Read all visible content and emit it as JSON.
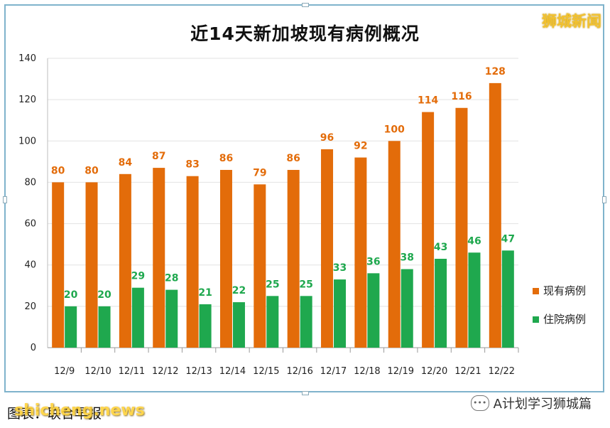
{
  "brand": "狮城新闻",
  "credit": "图表：联合早报",
  "watermark": "shicheng.news",
  "wechat": {
    "label": "A计划学习狮城篇"
  },
  "colors": {
    "current": "#e36c0a",
    "hospital": "#1fa84e",
    "frame": "#7fb3cc"
  },
  "chart_data": {
    "type": "bar",
    "title": "近14天新加坡现有病例概况",
    "categories": [
      "12/9",
      "12/10",
      "12/11",
      "12/12",
      "12/13",
      "12/14",
      "12/15",
      "12/16",
      "12/17",
      "12/18",
      "12/19",
      "12/20",
      "12/21",
      "12/22"
    ],
    "series": [
      {
        "name": "现有病例",
        "values": [
          80,
          80,
          84,
          87,
          83,
          86,
          79,
          86,
          96,
          92,
          100,
          114,
          116,
          128
        ]
      },
      {
        "name": "住院病例",
        "values": [
          20,
          20,
          29,
          28,
          21,
          22,
          25,
          25,
          33,
          36,
          38,
          43,
          46,
          47
        ]
      }
    ],
    "ylim": [
      0,
      140
    ],
    "yticks": [
      0,
      20,
      40,
      60,
      80,
      100,
      120,
      140
    ],
    "grid": true,
    "legend": "right"
  }
}
